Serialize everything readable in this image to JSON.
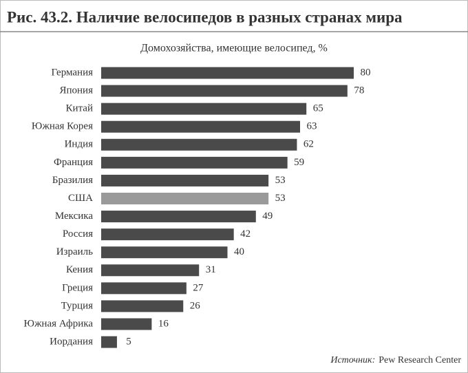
{
  "chart_data": {
    "type": "bar",
    "orientation": "horizontal",
    "title": "Рис. 43.2. Наличие велосипедов в разных странах мира",
    "subtitle": "Домохозяйства, имеющие велосипед, %",
    "categories": [
      "Германия",
      "Япония",
      "Китай",
      "Южная Корея",
      "Индия",
      "Франция",
      "Бразилия",
      "США",
      "Мексика",
      "Россия",
      "Израиль",
      "Кения",
      "Греция",
      "Турция",
      "Южная Африка",
      "Иордания"
    ],
    "values": [
      80,
      78,
      65,
      63,
      62,
      59,
      53,
      53,
      49,
      42,
      40,
      31,
      27,
      26,
      16,
      5
    ],
    "colors": [
      "#4a4a4a",
      "#4a4a4a",
      "#4a4a4a",
      "#4a4a4a",
      "#4a4a4a",
      "#4a4a4a",
      "#4a4a4a",
      "#9a9a9a",
      "#4a4a4a",
      "#4a4a4a",
      "#4a4a4a",
      "#4a4a4a",
      "#4a4a4a",
      "#4a4a4a",
      "#4a4a4a",
      "#4a4a4a"
    ],
    "source_label": "Источник:",
    "source": "Pew Research Center"
  }
}
